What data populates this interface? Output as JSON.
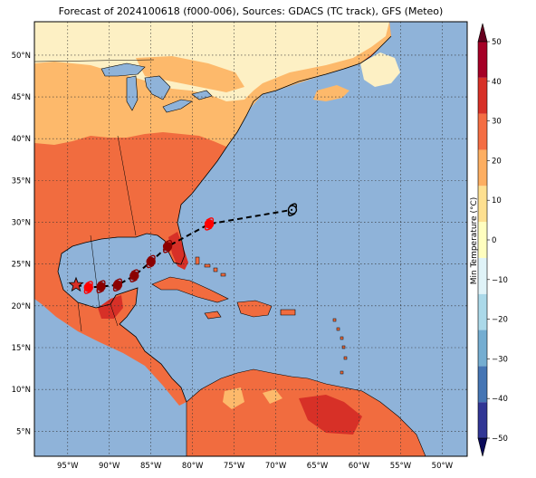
{
  "title": "Forecast of 2024100618 (f000-006), Sources: GDACS (TC track), GFS (Meteo)",
  "map": {
    "lon_range": [
      -99,
      -47
    ],
    "lat_range": [
      2,
      54
    ],
    "lon_ticks": [
      "95°W",
      "90°W",
      "85°W",
      "80°W",
      "75°W",
      "70°W",
      "65°W",
      "60°W",
      "55°W",
      "50°W"
    ],
    "lat_ticks": [
      "5°N",
      "10°N",
      "15°N",
      "20°N",
      "25°N",
      "30°N",
      "35°N",
      "40°N",
      "45°N",
      "50°N"
    ],
    "ocean_color": "#8fb3d9",
    "land_colors": {
      "cold": "#fdf0c4",
      "cool": "#fdb96b",
      "warm": "#f16c3f",
      "hot": "#d73027"
    }
  },
  "track": {
    "star_position": [
      -94,
      22.5
    ],
    "points": [
      {
        "lon": -92.5,
        "lat": 22.2,
        "color": "#ff0000"
      },
      {
        "lon": -91,
        "lat": 22.3,
        "color": "#8b0000"
      },
      {
        "lon": -89,
        "lat": 22.5,
        "color": "#8b0000"
      },
      {
        "lon": -87,
        "lat": 23.6,
        "color": "#8b0000"
      },
      {
        "lon": -85,
        "lat": 25.3,
        "color": "#8b0000"
      },
      {
        "lon": -83,
        "lat": 27.1,
        "color": "#8b0000"
      },
      {
        "lon": -78,
        "lat": 29.8,
        "color": "#ff0000"
      },
      {
        "lon": -68,
        "lat": 31.5,
        "color": "#000000"
      }
    ]
  },
  "colorbar": {
    "label": "Min Temperature (°C)",
    "ticks": [
      "50",
      "40",
      "30",
      "20",
      "10",
      "0",
      "−10",
      "−20",
      "−30",
      "−40",
      "−50"
    ],
    "colors": [
      "#313695",
      "#4575b4",
      "#74add1",
      "#abd9e9",
      "#e0f3f8",
      "#fffebf",
      "#fee090",
      "#fdae61",
      "#f46d43",
      "#d73027",
      "#a50026"
    ]
  }
}
